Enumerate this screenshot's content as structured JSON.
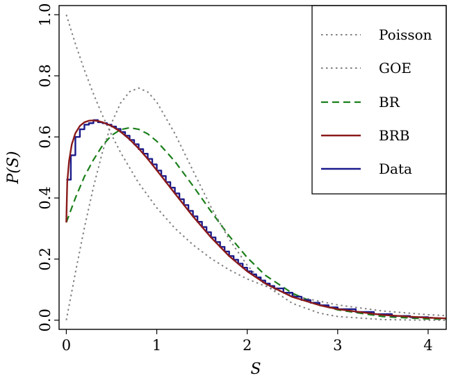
{
  "chart_data": {
    "type": "line",
    "title": "",
    "xlabel": "S",
    "ylabel": "P(S)",
    "xlim": [
      -0.08,
      4.2
    ],
    "ylim": [
      -0.03,
      1.03
    ],
    "x_ticks": [
      "0",
      "1",
      "2",
      "3",
      "4"
    ],
    "y_ticks": [
      "0.0",
      "0.2",
      "0.4",
      "0.6",
      "0.8",
      "1.0"
    ],
    "grid": false,
    "legend_position": "top-right",
    "series": [
      {
        "name": "Poisson",
        "style": "dotted",
        "color": "#7f7f7f",
        "x": [
          0,
          0.1,
          0.2,
          0.3,
          0.4,
          0.5,
          0.6,
          0.8,
          1.0,
          1.2,
          1.4,
          1.6,
          1.8,
          2.0,
          2.3,
          2.6,
          3.0,
          3.5,
          4.0,
          4.2
        ],
        "y": [
          1.0,
          0.905,
          0.819,
          0.741,
          0.67,
          0.607,
          0.549,
          0.449,
          0.368,
          0.301,
          0.247,
          0.202,
          0.165,
          0.135,
          0.1,
          0.074,
          0.05,
          0.03,
          0.018,
          0.015
        ]
      },
      {
        "name": "GOE",
        "style": "dotted",
        "color": "#7f7f7f",
        "x": [
          0,
          0.1,
          0.2,
          0.3,
          0.4,
          0.5,
          0.6,
          0.7,
          0.8,
          0.9,
          1.0,
          1.2,
          1.4,
          1.6,
          1.8,
          2.0,
          2.2,
          2.5,
          2.8,
          3.0,
          3.5,
          4.0,
          4.2
        ],
        "y": [
          0.0,
          0.155,
          0.303,
          0.436,
          0.551,
          0.645,
          0.711,
          0.748,
          0.76,
          0.747,
          0.714,
          0.611,
          0.49,
          0.37,
          0.265,
          0.18,
          0.115,
          0.055,
          0.023,
          0.012,
          0.002,
          0.0,
          0.0
        ]
      },
      {
        "name": "BR",
        "style": "dashed",
        "color": "#1a7f1a",
        "x": [
          0,
          0.05,
          0.1,
          0.2,
          0.3,
          0.4,
          0.5,
          0.6,
          0.7,
          0.8,
          0.9,
          1.0,
          1.2,
          1.4,
          1.6,
          1.8,
          2.0,
          2.2,
          2.5,
          2.8,
          3.0,
          3.5,
          4.0,
          4.2
        ],
        "y": [
          0.32,
          0.36,
          0.4,
          0.47,
          0.525,
          0.572,
          0.605,
          0.624,
          0.63,
          0.625,
          0.61,
          0.586,
          0.52,
          0.44,
          0.356,
          0.276,
          0.205,
          0.147,
          0.088,
          0.05,
          0.034,
          0.012,
          0.004,
          0.003
        ]
      },
      {
        "name": "BRB",
        "style": "solid",
        "color": "#8b1a1a",
        "x": [
          0,
          0.01,
          0.03,
          0.06,
          0.1,
          0.15,
          0.2,
          0.25,
          0.3,
          0.35,
          0.4,
          0.5,
          0.6,
          0.7,
          0.8,
          0.9,
          1.0,
          1.2,
          1.4,
          1.6,
          1.8,
          2.0,
          2.2,
          2.5,
          2.8,
          3.0,
          3.5,
          4.0,
          4.2
        ],
        "y": [
          0.32,
          0.45,
          0.52,
          0.575,
          0.612,
          0.636,
          0.648,
          0.653,
          0.654,
          0.652,
          0.648,
          0.636,
          0.617,
          0.592,
          0.562,
          0.528,
          0.491,
          0.415,
          0.34,
          0.271,
          0.21,
          0.16,
          0.12,
          0.076,
          0.049,
          0.036,
          0.017,
          0.008,
          0.006
        ]
      },
      {
        "name": "Data",
        "style": "step",
        "color": "#1a1a8b",
        "x": [
          0,
          0.05,
          0.1,
          0.15,
          0.2,
          0.25,
          0.3,
          0.35,
          0.4,
          0.45,
          0.5,
          0.55,
          0.6,
          0.65,
          0.7,
          0.75,
          0.8,
          0.85,
          0.9,
          0.95,
          1.0,
          1.05,
          1.1,
          1.15,
          1.2,
          1.25,
          1.3,
          1.35,
          1.4,
          1.45,
          1.5,
          1.55,
          1.6,
          1.65,
          1.7,
          1.75,
          1.8,
          1.85,
          1.9,
          1.95,
          2.0,
          2.05,
          2.1,
          2.15,
          2.2,
          2.25,
          2.3,
          2.4,
          2.5,
          2.6,
          2.7,
          2.8,
          2.9,
          3.0,
          3.2,
          3.4,
          3.6,
          3.8,
          4.0
        ],
        "y": [
          0.46,
          0.54,
          0.6,
          0.625,
          0.64,
          0.645,
          0.655,
          0.648,
          0.645,
          0.64,
          0.634,
          0.626,
          0.616,
          0.604,
          0.59,
          0.576,
          0.56,
          0.545,
          0.528,
          0.51,
          0.49,
          0.472,
          0.452,
          0.434,
          0.415,
          0.396,
          0.377,
          0.358,
          0.34,
          0.322,
          0.305,
          0.288,
          0.271,
          0.256,
          0.24,
          0.225,
          0.21,
          0.198,
          0.185,
          0.172,
          0.16,
          0.15,
          0.14,
          0.13,
          0.12,
          0.112,
          0.104,
          0.09,
          0.077,
          0.066,
          0.057,
          0.049,
          0.042,
          0.036,
          0.027,
          0.02,
          0.014,
          0.01,
          0.008
        ]
      }
    ]
  }
}
